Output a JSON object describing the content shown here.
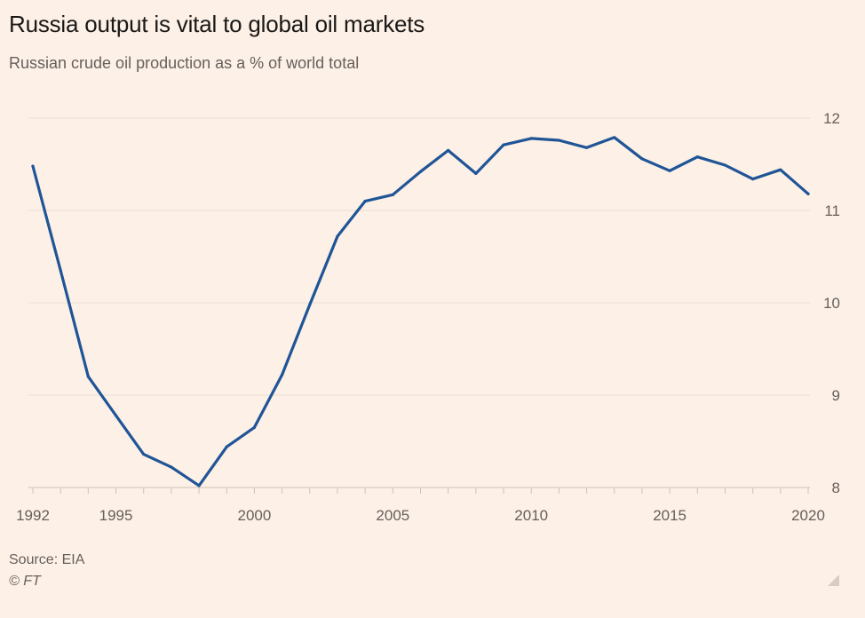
{
  "header": {
    "title": "Russia output is vital to global oil markets",
    "subtitle": "Russian crude oil production as a % of world total"
  },
  "footer": {
    "source": "Source: EIA",
    "copyright": "© FT"
  },
  "colors": {
    "background": "#fdf0e6",
    "line": "#1f5597",
    "gridline": "#ecdfd5",
    "tick_text": "#66605c"
  },
  "chart_data": {
    "type": "line",
    "title": "Russia output is vital to global oil markets",
    "subtitle": "Russian crude oil production as a % of world total",
    "xlabel": "",
    "ylabel": "",
    "xlim": [
      1992,
      2020
    ],
    "ylim": [
      8,
      12
    ],
    "x_ticks": [
      1992,
      1995,
      2000,
      2005,
      2010,
      2015,
      2020
    ],
    "y_ticks": [
      8,
      9,
      10,
      11,
      12
    ],
    "y_axis_position": "right",
    "grid": true,
    "legend": "none",
    "series": [
      {
        "x": [
          1992,
          1993,
          1994,
          1995,
          1996,
          1997,
          1998,
          1999,
          2000,
          2001,
          2002,
          2003,
          2004,
          2005,
          2006,
          2007,
          2008,
          2009,
          2010,
          2011,
          2012,
          2013,
          2014,
          2015,
          2016,
          2017,
          2018,
          2019,
          2020
        ],
        "values": [
          11.48,
          10.35,
          9.2,
          8.78,
          8.36,
          8.22,
          8.02,
          8.44,
          8.65,
          9.22,
          9.98,
          10.72,
          11.1,
          11.17,
          11.42,
          11.65,
          11.4,
          11.71,
          11.78,
          11.76,
          11.68,
          11.79,
          11.56,
          11.43,
          11.58,
          11.49,
          11.34,
          11.44,
          11.18
        ]
      }
    ]
  }
}
